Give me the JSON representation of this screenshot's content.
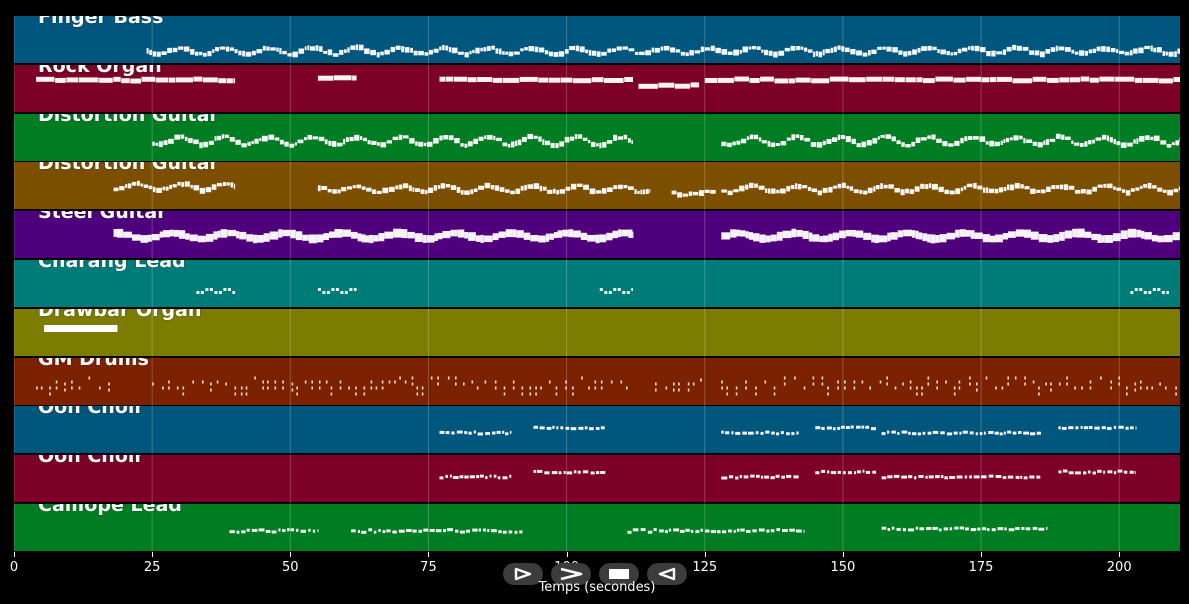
{
  "tracks": [
    {
      "name": "Finger Bass",
      "color": "#00567c"
    },
    {
      "name": "Rock Organ",
      "color": "#7c0027"
    },
    {
      "name": "Distortion Guitar",
      "color": "#007c22"
    },
    {
      "name": "Distortion Guitar",
      "color": "#7c4f00"
    },
    {
      "name": "Steel Guitar",
      "color": "#4f007c"
    },
    {
      "name": "Charang Lead",
      "color": "#007c78"
    },
    {
      "name": "Drawbar Organ",
      "color": "#7c7c00"
    },
    {
      "name": "GM Drums",
      "color": "#7c2200"
    },
    {
      "name": "Ooh Choir",
      "color": "#00567c"
    },
    {
      "name": "Ooh Choir",
      "color": "#7c0027"
    },
    {
      "name": "Calliope Lead",
      "color": "#007c22"
    }
  ],
  "axis": {
    "title": "Temps (secondes)",
    "ticks": [
      "0",
      "25",
      "50",
      "75",
      "100",
      "125",
      "150",
      "175",
      "200"
    ],
    "tick_values": [
      0,
      25,
      50,
      75,
      100,
      125,
      150,
      175,
      200
    ],
    "range": [
      0,
      211
    ]
  },
  "controls": [
    {
      "name": "play-icon"
    },
    {
      "name": "fast-forward-icon"
    },
    {
      "name": "stop-icon"
    },
    {
      "name": "rewind-icon"
    }
  ],
  "note_color": "#ffffff"
}
